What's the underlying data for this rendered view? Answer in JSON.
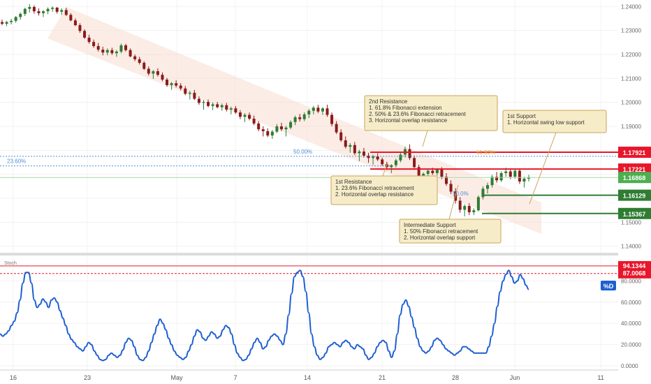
{
  "chart_data": [
    {
      "type": "candlestick",
      "title": "",
      "price_axis": {
        "ticks": [
          "1.24000",
          "1.23000",
          "1.22000",
          "1.21000",
          "1.20000",
          "1.19000",
          "1.18000",
          "1.17000",
          "1.16000",
          "1.15000",
          "1.14000"
        ],
        "range": [
          1.1373,
          1.2427
        ]
      },
      "candles_ohlc": [
        [
          1.2335,
          1.2345,
          1.2322,
          1.2328
        ],
        [
          1.2328,
          1.234,
          1.2318,
          1.2335
        ],
        [
          1.2335,
          1.2348,
          1.2325,
          1.234
        ],
        [
          1.234,
          1.236,
          1.2332,
          1.2356
        ],
        [
          1.2356,
          1.2375,
          1.2345,
          1.2369
        ],
        [
          1.2369,
          1.2395,
          1.236,
          1.239
        ],
        [
          1.239,
          1.241,
          1.2375,
          1.2398
        ],
        [
          1.2398,
          1.2405,
          1.237,
          1.238
        ],
        [
          1.238,
          1.2392,
          1.2362,
          1.2372
        ],
        [
          1.2372,
          1.2385,
          1.2356,
          1.238
        ],
        [
          1.238,
          1.2396,
          1.2368,
          1.239
        ],
        [
          1.239,
          1.24,
          1.2378,
          1.2395
        ],
        [
          1.2395,
          1.2398,
          1.237,
          1.2378
        ],
        [
          1.2378,
          1.2392,
          1.2365,
          1.2385
        ],
        [
          1.2385,
          1.2395,
          1.236,
          1.2365
        ],
        [
          1.2365,
          1.2372,
          1.2338,
          1.2342
        ],
        [
          1.2342,
          1.235,
          1.2318,
          1.2322
        ],
        [
          1.2322,
          1.233,
          1.229,
          1.2298
        ],
        [
          1.2298,
          1.2305,
          1.2265,
          1.227
        ],
        [
          1.227,
          1.2282,
          1.2245,
          1.2252
        ],
        [
          1.2252,
          1.2262,
          1.2228,
          1.2235
        ],
        [
          1.2235,
          1.2248,
          1.2212,
          1.222
        ],
        [
          1.222,
          1.2232,
          1.2196,
          1.2208
        ],
        [
          1.2208,
          1.2225,
          1.2196,
          1.2218
        ],
        [
          1.2218,
          1.2228,
          1.2198,
          1.2205
        ],
        [
          1.2205,
          1.2218,
          1.219,
          1.2212
        ],
        [
          1.2212,
          1.2245,
          1.2205,
          1.2238
        ],
        [
          1.2238,
          1.2244,
          1.2212,
          1.2218
        ],
        [
          1.2218,
          1.2225,
          1.2188,
          1.2192
        ],
        [
          1.2192,
          1.22,
          1.2172,
          1.218
        ],
        [
          1.218,
          1.219,
          1.2158,
          1.2165
        ],
        [
          1.2165,
          1.2172,
          1.2135,
          1.214
        ],
        [
          1.214,
          1.215,
          1.2112,
          1.212
        ],
        [
          1.212,
          1.2135,
          1.2098,
          1.213
        ],
        [
          1.213,
          1.2142,
          1.2108,
          1.2115
        ],
        [
          1.2115,
          1.2125,
          1.2088,
          1.2095
        ],
        [
          1.2095,
          1.2102,
          1.2065,
          1.2072
        ],
        [
          1.2072,
          1.2085,
          1.2052,
          1.208
        ],
        [
          1.208,
          1.2092,
          1.2062,
          1.207
        ],
        [
          1.207,
          1.208,
          1.205,
          1.2058
        ],
        [
          1.2058,
          1.2068,
          1.203,
          1.2036
        ],
        [
          1.2036,
          1.2048,
          1.2012,
          1.204
        ],
        [
          1.204,
          1.2052,
          1.201,
          1.2015
        ],
        [
          1.2015,
          1.2025,
          1.199,
          1.1998
        ],
        [
          1.1998,
          1.201,
          1.197,
          1.2002
        ],
        [
          1.2002,
          1.2012,
          1.198,
          1.1985
        ],
        [
          1.1985,
          1.2,
          1.1968,
          1.1992
        ],
        [
          1.1992,
          1.2002,
          1.1975,
          1.198
        ],
        [
          1.198,
          1.1995,
          1.1965,
          1.1988
        ],
        [
          1.1988,
          1.1998,
          1.1962,
          1.197
        ],
        [
          1.197,
          1.1982,
          1.195,
          1.1975
        ],
        [
          1.1975,
          1.1985,
          1.1952,
          1.1958
        ],
        [
          1.1958,
          1.1968,
          1.193,
          1.194
        ],
        [
          1.194,
          1.1955,
          1.1918,
          1.1948
        ],
        [
          1.1948,
          1.1958,
          1.1925,
          1.1932
        ],
        [
          1.1932,
          1.1945,
          1.1905,
          1.1912
        ],
        [
          1.1912,
          1.1922,
          1.188,
          1.1888
        ],
        [
          1.1888,
          1.19,
          1.1858,
          1.188
        ],
        [
          1.188,
          1.1892,
          1.1855,
          1.1862
        ],
        [
          1.1862,
          1.1885,
          1.1848,
          1.1878
        ],
        [
          1.1878,
          1.191,
          1.1872,
          1.19
        ],
        [
          1.19,
          1.1915,
          1.188,
          1.1888
        ],
        [
          1.1888,
          1.1902,
          1.1858,
          1.1895
        ],
        [
          1.1895,
          1.1925,
          1.1888,
          1.1918
        ],
        [
          1.1918,
          1.1945,
          1.1905,
          1.1938
        ],
        [
          1.1938,
          1.1952,
          1.192,
          1.193
        ],
        [
          1.193,
          1.1958,
          1.1922,
          1.195
        ],
        [
          1.195,
          1.1972,
          1.1935,
          1.1965
        ],
        [
          1.1965,
          1.1985,
          1.195,
          1.1978
        ],
        [
          1.1978,
          1.199,
          1.1955,
          1.1962
        ],
        [
          1.1962,
          1.198,
          1.1948,
          1.1975
        ],
        [
          1.1975,
          1.199,
          1.194,
          1.1948
        ],
        [
          1.1948,
          1.1958,
          1.19,
          1.191
        ],
        [
          1.191,
          1.1922,
          1.1868,
          1.1875
        ],
        [
          1.1875,
          1.1888,
          1.1835,
          1.1842
        ],
        [
          1.1842,
          1.1858,
          1.1808,
          1.1815
        ],
        [
          1.1815,
          1.183,
          1.179,
          1.1822
        ],
        [
          1.1822,
          1.1835,
          1.178,
          1.1788
        ],
        [
          1.1788,
          1.1802,
          1.1755,
          1.1795
        ],
        [
          1.1795,
          1.181,
          1.177,
          1.1778
        ],
        [
          1.1778,
          1.179,
          1.1748,
          1.1768
        ],
        [
          1.1768,
          1.1782,
          1.174,
          1.1775
        ],
        [
          1.1775,
          1.1788,
          1.1755,
          1.1762
        ],
        [
          1.1762,
          1.177,
          1.1735,
          1.1742
        ],
        [
          1.1742,
          1.1752,
          1.1718,
          1.173
        ],
        [
          1.173,
          1.1742,
          1.1705,
          1.1738
        ],
        [
          1.1738,
          1.1765,
          1.1728,
          1.1758
        ],
        [
          1.1758,
          1.179,
          1.175,
          1.1782
        ],
        [
          1.1782,
          1.1815,
          1.177,
          1.1805
        ],
        [
          1.1805,
          1.1825,
          1.176,
          1.1768
        ],
        [
          1.1768,
          1.1778,
          1.1722,
          1.173
        ],
        [
          1.173,
          1.174,
          1.1688,
          1.1695
        ],
        [
          1.1695,
          1.1708,
          1.168,
          1.1702
        ],
        [
          1.1702,
          1.1722,
          1.169,
          1.1715
        ],
        [
          1.1715,
          1.1728,
          1.1698,
          1.1705
        ],
        [
          1.1705,
          1.1725,
          1.1695,
          1.172
        ],
        [
          1.172,
          1.173,
          1.168,
          1.169
        ],
        [
          1.169,
          1.1705,
          1.1652,
          1.166
        ],
        [
          1.166,
          1.1675,
          1.1618,
          1.1628
        ],
        [
          1.1628,
          1.1642,
          1.1578,
          1.159
        ],
        [
          1.159,
          1.1605,
          1.154,
          1.1552
        ],
        [
          1.1552,
          1.1575,
          1.1525,
          1.1568
        ],
        [
          1.1568,
          1.158,
          1.153,
          1.1542
        ],
        [
          1.1542,
          1.1558,
          1.153,
          1.155
        ],
        [
          1.155,
          1.1612,
          1.1545,
          1.1605
        ],
        [
          1.1605,
          1.165,
          1.1595,
          1.164
        ],
        [
          1.164,
          1.1665,
          1.162,
          1.1655
        ],
        [
          1.1655,
          1.1698,
          1.1645,
          1.169
        ],
        [
          1.169,
          1.171,
          1.1665,
          1.1675
        ],
        [
          1.1675,
          1.1712,
          1.1668,
          1.1705
        ],
        [
          1.1705,
          1.1728,
          1.169,
          1.1712
        ],
        [
          1.1712,
          1.1725,
          1.168,
          1.169
        ],
        [
          1.169,
          1.1722,
          1.1682,
          1.1715
        ],
        [
          1.1715,
          1.1722,
          1.166,
          1.167
        ],
        [
          1.167,
          1.169,
          1.1645,
          1.1682
        ],
        [
          1.1682,
          1.1698,
          1.167,
          1.1688
        ]
      ],
      "levels": [
        {
          "name": "2nd Resistance",
          "value": "1.17921",
          "color": "#e8162b"
        },
        {
          "name": "1st Resistance",
          "value": "1.17221",
          "color": "#e8162b"
        },
        {
          "name": "current price",
          "value": "1.16868",
          "color": "#4caf50"
        },
        {
          "name": "1st Support",
          "value": "1.16129",
          "color": "#2e7d32"
        },
        {
          "name": "Intermediate Support",
          "value": "1.15367",
          "color": "#2e7d32"
        }
      ],
      "fib_labels": [
        {
          "label": "23.60%",
          "value": 1.1735
        },
        {
          "label": "50.00%",
          "value": 1.1775
        },
        {
          "label": "61.80%",
          "value": 1.1775
        },
        {
          "label": "50.0%",
          "value": 1.1635
        }
      ],
      "annotations": [
        {
          "title": "2nd Resistance",
          "lines": [
            "1. 61.8% Fibonacci extension",
            "2. 50% & 23.6% Fibonacci retracement",
            "3. Horizontal overlap resistance"
          ]
        },
        {
          "title": "1st Support",
          "lines": [
            "1. Horizontal swing low support"
          ]
        },
        {
          "title": "1st Resistance",
          "lines": [
            "1. 23.6% Fibonacci retracement",
            "2. Horizontal overlap resistance"
          ]
        },
        {
          "title": "Intermediate Support",
          "lines": [
            "1. 50% Fibonacci retracement",
            "2. Horizontal overlap support"
          ]
        }
      ],
      "colors": {
        "bull": "#2e7d32",
        "bear": "#8b1a1a",
        "channel": "#f7d9cc",
        "resistance": "#e8162b",
        "support": "#2e7d32",
        "annotation_bg": "#f6ecc8",
        "annotation_border": "#c9a55a"
      }
    },
    {
      "type": "line",
      "title": "",
      "indicator_label": "Stoch",
      "legend_badge": "%D",
      "y_axis": {
        "ticks": [
          "80.0000",
          "60.0000",
          "40.0000",
          "20.0000",
          "0.0000"
        ],
        "range": [
          0,
          100
        ]
      },
      "levels": [
        {
          "value": "94.1344",
          "color": "#e8162b"
        },
        {
          "value": "87.0068",
          "color": "#e8162b"
        }
      ],
      "series": [
        {
          "values": [
            30,
            28,
            30,
            33,
            38,
            42,
            50,
            62,
            78,
            88,
            88,
            78,
            62,
            55,
            58,
            63,
            60,
            55,
            62,
            64,
            60,
            52,
            45,
            38,
            30,
            25,
            22,
            18,
            16,
            14,
            18,
            22,
            20,
            14,
            10,
            6,
            5,
            6,
            10,
            12,
            10,
            8,
            10,
            15,
            22,
            26,
            24,
            18,
            10,
            6,
            5,
            8,
            14,
            22,
            30,
            38,
            44,
            40,
            34,
            26,
            20,
            14,
            10,
            8,
            6,
            8,
            14,
            20,
            28,
            34,
            32,
            26,
            24,
            28,
            32,
            30,
            26,
            28,
            34,
            38,
            36,
            30,
            20,
            12,
            8,
            5,
            6,
            10,
            16,
            22,
            26,
            22,
            16,
            18,
            24,
            28,
            30,
            28,
            24,
            20,
            30,
            48,
            68,
            84,
            88,
            90,
            84,
            70,
            50,
            30,
            18,
            10,
            6,
            8,
            12,
            18,
            20,
            22,
            20,
            18,
            22,
            24,
            22,
            18,
            16,
            20,
            18,
            16,
            10,
            6,
            8,
            12,
            18,
            22,
            24,
            22,
            14,
            8,
            14,
            30,
            48,
            58,
            62,
            56,
            46,
            36,
            26,
            18,
            14,
            12,
            14,
            18,
            24,
            26,
            24,
            20,
            16,
            14,
            12,
            10,
            12,
            14,
            18,
            18,
            16,
            14,
            12,
            12,
            12,
            12,
            12,
            18,
            28,
            40,
            56,
            70,
            80,
            86,
            90,
            84,
            78,
            80,
            86,
            82,
            76,
            72
          ]
        }
      ],
      "color": "#1e5fd0"
    }
  ],
  "x_axis": {
    "ticks": [
      "16",
      "23",
      "May",
      "7",
      "14",
      "21",
      "28",
      "Jun",
      "11"
    ]
  }
}
